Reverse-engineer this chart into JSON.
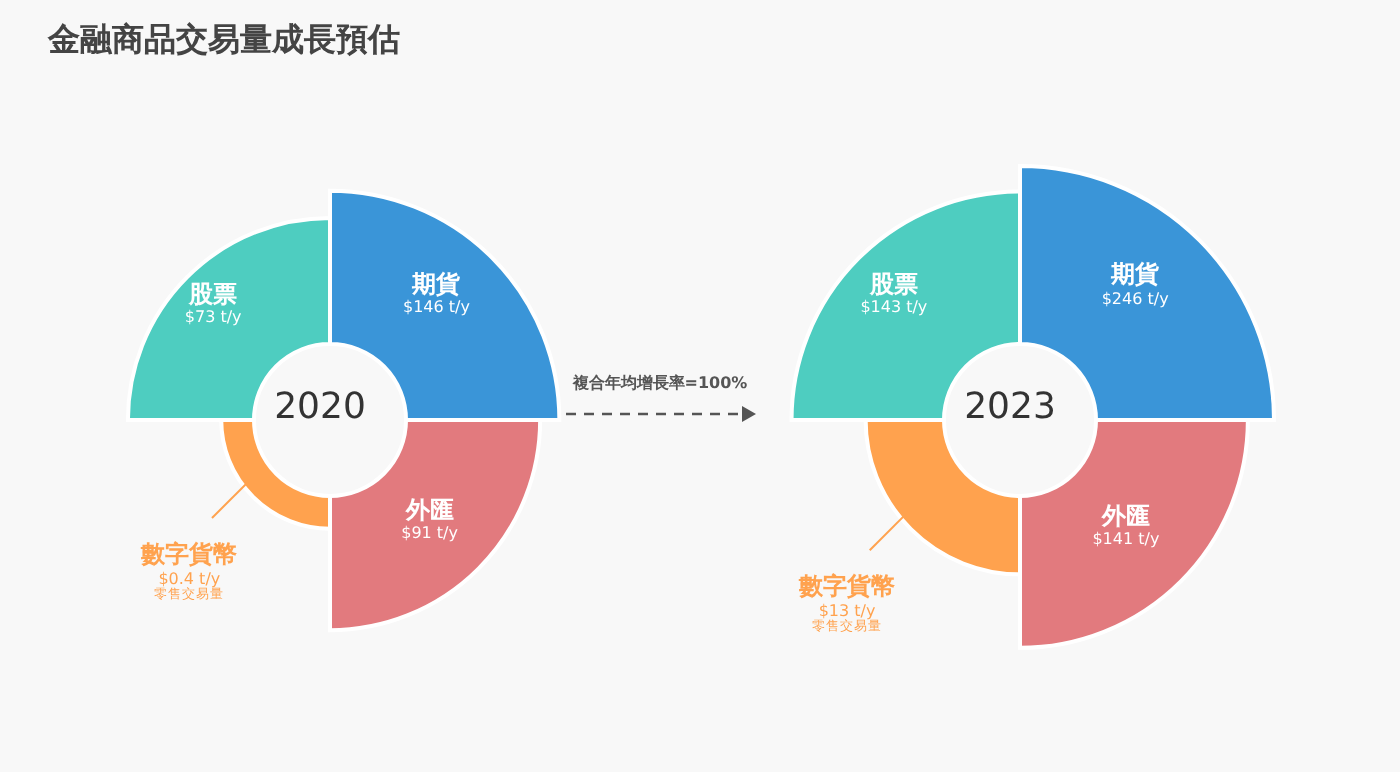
{
  "chart_data": [
    {
      "type": "other",
      "title": "金融商品交易量成長預估",
      "annotations": [
        "複合年均增長率=100%"
      ]
    },
    {
      "type": "other",
      "title": "2020",
      "categories": [
        "股票",
        "期貨",
        "外匯",
        "數字貨幣"
      ],
      "values": [
        73,
        146,
        91,
        0.4
      ],
      "value_labels": [
        "$73 t/y",
        "$146 t/y",
        "$91 t/y",
        "$0.4 t/y"
      ],
      "colors": [
        "#4ecdc0",
        "#3a95d8",
        "#e27a7e",
        "#ffa24e"
      ],
      "annotations": [
        "零售交易量"
      ]
    },
    {
      "type": "other",
      "title": "2023",
      "categories": [
        "股票",
        "期貨",
        "外匯",
        "數字貨幣"
      ],
      "values": [
        143,
        246,
        141,
        13
      ],
      "value_labels": [
        "$143 t/y",
        "$246 t/y",
        "$141 t/y",
        "$13 t/y"
      ],
      "colors": [
        "#4ecdc0",
        "#3a95d8",
        "#e27a7e",
        "#ffa24e"
      ],
      "annotations": [
        "零售交易量"
      ]
    }
  ]
}
